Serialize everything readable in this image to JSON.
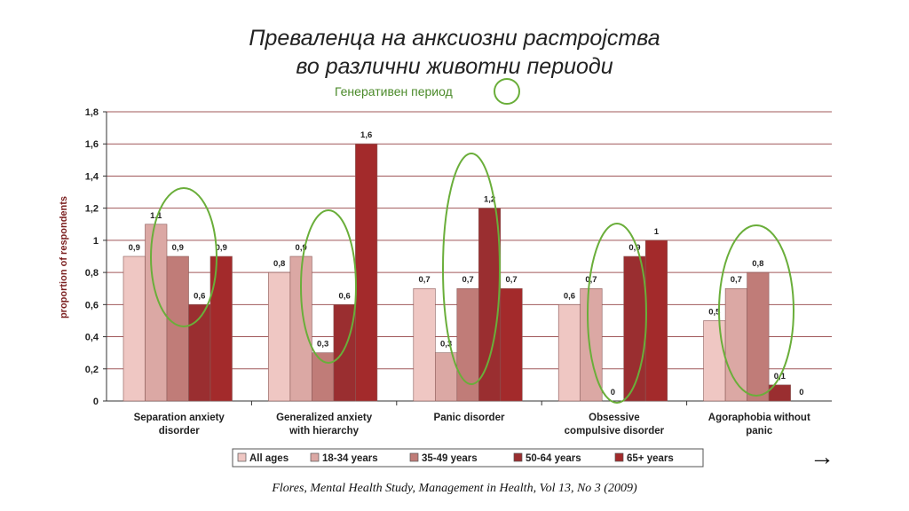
{
  "slide": {
    "title_line1": "Преваленца на анксиозни растројства",
    "title_line2": "во различни  животни  периоди",
    "subtitle": "Генеративен период",
    "source": "Flores, Mental Health Study,  Management in Health, Vol 13, No 3 (2009)",
    "arrow_symbol": "→"
  },
  "chart_data": {
    "type": "bar",
    "ylabel": "proportion of respondents",
    "ylim": [
      0,
      1.8
    ],
    "yticks": [
      0,
      0.2,
      0.4,
      0.6,
      0.8,
      1,
      1.2,
      1.4,
      1.6,
      1.8
    ],
    "ytick_labels": [
      "0",
      "0,2",
      "0,4",
      "0,6",
      "0,8",
      "1",
      "1,2",
      "1,4",
      "1,6",
      "1,8"
    ],
    "grid": true,
    "legend_position": "bottom",
    "categories": [
      [
        "Separation anxiety",
        "disorder"
      ],
      [
        "Generalized anxiety",
        "with hierarchy"
      ],
      [
        "Panic disorder"
      ],
      [
        "Obsessive",
        "compulsive disorder"
      ],
      [
        "Agoraphobia without",
        "panic"
      ]
    ],
    "series": [
      {
        "name": "All ages",
        "color": "#efc7c3",
        "values": [
          0.9,
          0.8,
          0.7,
          0.6,
          0.5
        ],
        "labels": [
          "0,9",
          "0,8",
          "0,7",
          "0,6",
          "0,5"
        ]
      },
      {
        "name": "18-34 years",
        "color": "#dba8a4",
        "values": [
          1.1,
          0.9,
          0.3,
          0.7,
          0.7
        ],
        "labels": [
          "1,1",
          "0,9",
          "0,3",
          "0,7",
          "0,7"
        ]
      },
      {
        "name": "35-49 years",
        "color": "#c07c78",
        "values": [
          0.9,
          0.3,
          0.7,
          0,
          0.8
        ],
        "labels": [
          "0,9",
          "0,3",
          "0,7",
          "0",
          "0,8"
        ]
      },
      {
        "name": "50-64 years",
        "color": "#9a2e30",
        "values": [
          0.6,
          0.6,
          1.2,
          0.9,
          0.1
        ],
        "labels": [
          "0,6",
          "0,6",
          "1,2",
          "0,9",
          "0,1"
        ]
      },
      {
        "name": "65+ years",
        "color": "#a32a2b",
        "values": [
          0.9,
          1.6,
          0.7,
          1.0,
          0
        ],
        "labels": [
          "0,9",
          "1,6",
          "0,7",
          "1",
          "0"
        ]
      }
    ],
    "annotation_color": "#6aae3a"
  }
}
